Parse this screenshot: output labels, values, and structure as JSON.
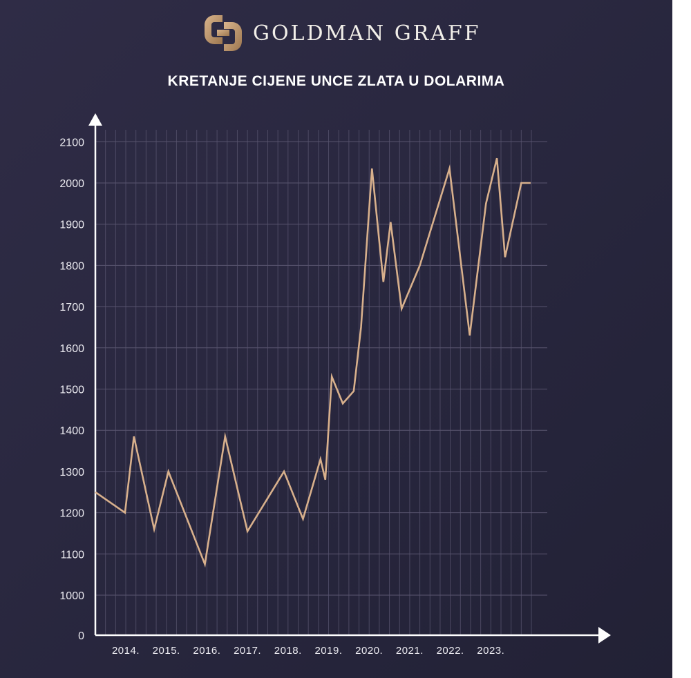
{
  "brand": {
    "name": "GOLDMAN GRAFF",
    "logo_icon": "gg-monogram-icon",
    "logo_colors": [
      "#c9a37a",
      "#a07a55"
    ]
  },
  "colors": {
    "background": "#2a2840",
    "line": "#d8b08c",
    "grid": "#5a5670",
    "axis": "#ffffff",
    "text": "#ecebf1"
  },
  "chart_data": {
    "type": "line",
    "title": "KRETANJE CIJENE UNCE ZLATA U DOLARIMA",
    "xlabel": "",
    "ylabel": "",
    "ylim": [
      0,
      2100
    ],
    "y_ticks": [
      0,
      1000,
      1100,
      1200,
      1300,
      1400,
      1500,
      1600,
      1700,
      1800,
      1900,
      2000,
      2100
    ],
    "y_tick_labels": [
      "0",
      "1000",
      "1100",
      "1200",
      "1300",
      "1400",
      "1500",
      "1600",
      "1700",
      "1800",
      "1900",
      "2000",
      "2100"
    ],
    "x_tick_labels": [
      "2014.",
      "2015.",
      "2016.",
      "2017.",
      "2018.",
      "2019.",
      "2020.",
      "2021.",
      "2022.",
      "2023."
    ],
    "grid": true,
    "x": [
      0,
      0.73,
      0.95,
      1.45,
      1.8,
      2.7,
      3.2,
      3.75,
      4.65,
      5.12,
      5.55,
      5.67,
      5.83,
      6.1,
      6.37,
      6.55,
      6.82,
      7.1,
      7.28,
      7.55,
      8.0,
      8.73,
      9.23,
      9.63,
      9.9,
      10.1,
      10.5,
      10.73
    ],
    "y": [
      1250,
      1200,
      1385,
      1160,
      1300,
      1075,
      1385,
      1155,
      1300,
      1185,
      1330,
      1280,
      1530,
      1465,
      1495,
      1650,
      2035,
      1760,
      1905,
      1695,
      1800,
      2035,
      1630,
      1950,
      2060,
      1820,
      2000,
      2000
    ],
    "series": [
      {
        "name": "",
        "values": [
          1250,
          1200,
          1385,
          1160,
          1300,
          1075,
          1385,
          1155,
          1300,
          1185,
          1330,
          1280,
          1530,
          1465,
          1495,
          1650,
          2035,
          1760,
          1905,
          1695,
          1800,
          2035,
          1630,
          1950,
          2060,
          1820,
          2000,
          2000
        ]
      }
    ]
  }
}
